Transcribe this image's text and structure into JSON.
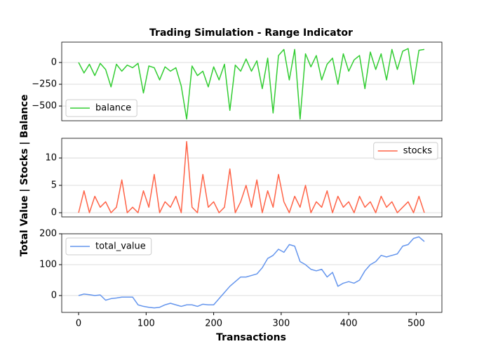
{
  "chart_data": [
    {
      "type": "line",
      "title": "Trading Simulation - Range Indicator",
      "x": [
        0,
        8,
        16,
        24,
        32,
        40,
        48,
        56,
        64,
        72,
        80,
        88,
        96,
        104,
        112,
        120,
        128,
        136,
        144,
        152,
        160,
        168,
        176,
        184,
        192,
        200,
        208,
        216,
        224,
        232,
        240,
        248,
        256,
        264,
        272,
        280,
        288,
        296,
        304,
        312,
        320,
        328,
        336,
        344,
        352,
        360,
        368,
        376,
        384,
        392,
        400,
        408,
        416,
        424,
        432,
        440,
        448,
        456,
        464,
        472,
        480,
        488,
        496,
        504,
        512
      ],
      "series": [
        {
          "name": "balance",
          "color": "#32cd32",
          "values": [
            0,
            -120,
            -20,
            -150,
            -10,
            -80,
            -280,
            -20,
            -100,
            -30,
            -60,
            -10,
            -350,
            -40,
            -60,
            -200,
            -50,
            -100,
            -60,
            -270,
            -650,
            -40,
            -150,
            -100,
            -280,
            -50,
            -200,
            -20,
            -550,
            -30,
            -100,
            40,
            -100,
            20,
            -300,
            50,
            -580,
            80,
            150,
            -200,
            150,
            -650,
            100,
            -50,
            80,
            -200,
            -20,
            50,
            -250,
            100,
            -100,
            30,
            80,
            -300,
            120,
            -80,
            100,
            -200,
            150,
            -80,
            130,
            160,
            -250,
            140,
            150
          ]
        }
      ],
      "xlim": [
        -25,
        538
      ],
      "ylim": [
        -669,
        234
      ],
      "yticks": [
        {
          "value": -500,
          "label": "−500"
        },
        {
          "value": -250,
          "label": "−250"
        },
        0
      ],
      "grid": true,
      "legend": "lower left"
    },
    {
      "type": "line",
      "y_label": "Total Value | Stocks | Balance",
      "x": [
        0,
        8,
        16,
        24,
        32,
        40,
        48,
        56,
        64,
        72,
        80,
        88,
        96,
        104,
        112,
        120,
        128,
        136,
        144,
        152,
        160,
        168,
        176,
        184,
        192,
        200,
        208,
        216,
        224,
        232,
        240,
        248,
        256,
        264,
        272,
        280,
        288,
        296,
        304,
        312,
        320,
        328,
        336,
        344,
        352,
        360,
        368,
        376,
        384,
        392,
        400,
        408,
        416,
        424,
        432,
        440,
        448,
        456,
        464,
        472,
        480,
        488,
        496,
        504,
        512
      ],
      "series": [
        {
          "name": "stocks",
          "color": "#ff6347",
          "values": [
            0,
            4,
            0,
            3,
            1,
            2,
            0,
            1,
            6,
            0,
            1,
            0,
            4,
            1,
            7,
            0,
            2,
            1,
            3,
            0,
            13,
            1,
            0,
            7,
            1,
            2,
            0,
            1,
            8,
            0,
            2,
            5,
            1,
            6,
            0,
            4,
            1,
            7,
            2,
            0,
            3,
            1,
            5,
            0,
            2,
            1,
            4,
            0,
            3,
            1,
            2,
            0,
            3,
            1,
            2,
            0,
            3,
            1,
            2,
            0,
            1,
            2,
            0,
            3,
            0
          ]
        }
      ],
      "xlim": [
        -25,
        538
      ],
      "ylim": [
        -0.77,
        13.6
      ],
      "yticks": [
        0,
        5,
        10
      ],
      "grid": true,
      "legend": "upper right"
    },
    {
      "type": "line",
      "x_label": "Transactions",
      "x": [
        0,
        8,
        16,
        24,
        32,
        40,
        48,
        56,
        64,
        72,
        80,
        88,
        96,
        104,
        112,
        120,
        128,
        136,
        144,
        152,
        160,
        168,
        176,
        184,
        192,
        200,
        208,
        216,
        224,
        232,
        240,
        248,
        256,
        264,
        272,
        280,
        288,
        296,
        304,
        312,
        320,
        328,
        336,
        344,
        352,
        360,
        368,
        376,
        384,
        392,
        400,
        408,
        416,
        424,
        432,
        440,
        448,
        456,
        464,
        472,
        480,
        488,
        496,
        504,
        512
      ],
      "series": [
        {
          "name": "total_value",
          "color": "#6495ed",
          "values": [
            0,
            5,
            3,
            0,
            2,
            -15,
            -10,
            -8,
            -5,
            -5,
            -5,
            -30,
            -35,
            -38,
            -40,
            -38,
            -30,
            -25,
            -30,
            -35,
            -30,
            -30,
            -35,
            -28,
            -30,
            -30,
            -10,
            10,
            30,
            45,
            60,
            60,
            65,
            70,
            90,
            120,
            130,
            150,
            140,
            165,
            160,
            110,
            100,
            85,
            80,
            85,
            60,
            75,
            30,
            40,
            45,
            40,
            50,
            80,
            100,
            110,
            130,
            125,
            130,
            135,
            160,
            165,
            185,
            190,
            175
          ]
        }
      ],
      "xlim": [
        -25,
        538
      ],
      "ylim": [
        -54.5,
        200
      ],
      "xticks": [
        0,
        100,
        200,
        300,
        400,
        500
      ],
      "yticks": [
        0,
        100,
        200
      ],
      "grid": true,
      "legend": "upper left"
    }
  ]
}
